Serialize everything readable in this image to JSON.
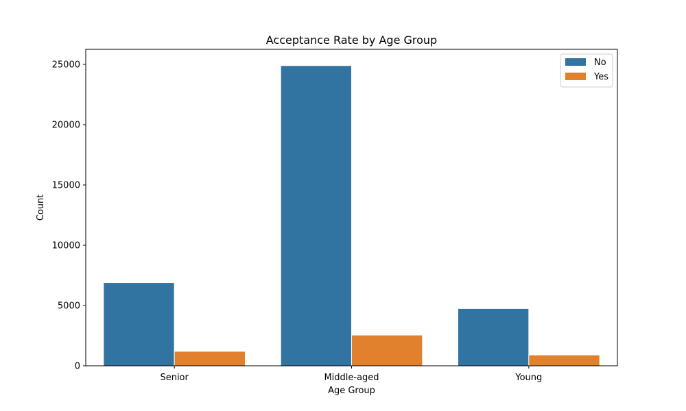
{
  "chart_data": {
    "type": "bar",
    "title": "Acceptance Rate by Age Group",
    "xlabel": "Age Group",
    "ylabel": "Count",
    "categories": [
      "Senior",
      "Middle-aged",
      "Young"
    ],
    "series": [
      {
        "name": "No",
        "values": [
          6900,
          24900,
          4750
        ],
        "color": "#3274a1"
      },
      {
        "name": "Yes",
        "values": [
          1200,
          2550,
          900
        ],
        "color": "#e1812c"
      }
    ],
    "ylim": [
      0,
      26250
    ],
    "yticks": [
      0,
      5000,
      10000,
      15000,
      20000,
      25000
    ],
    "grid": false,
    "legend": "top-right"
  }
}
